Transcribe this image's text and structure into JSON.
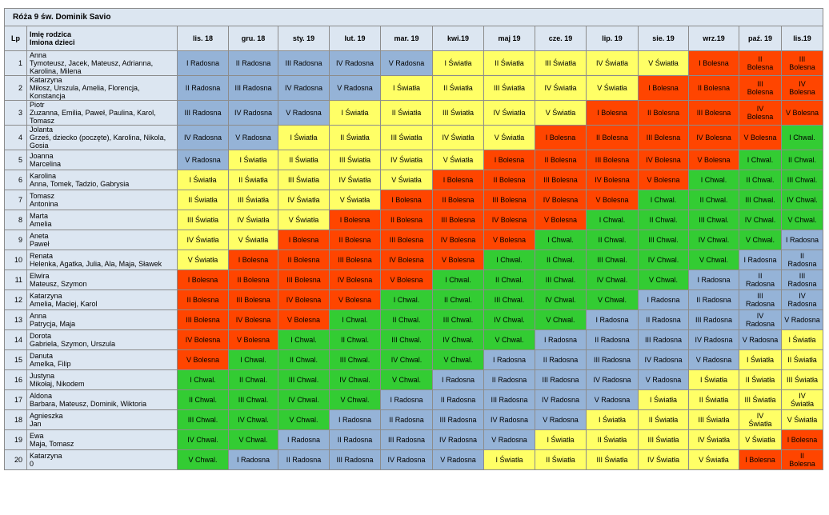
{
  "title": "Róża 9 św. Dominik Savio",
  "headers": {
    "lp": "Lp",
    "name1": "Imię rodzica",
    "name2": "Imiona dzieci",
    "months": [
      "lis. 18",
      "gru. 18",
      "sty. 19",
      "lut. 19",
      "mar. 19",
      "kwi.19",
      "maj 19",
      "cze. 19",
      "lip. 19",
      "sie. 19",
      "wrz.19",
      "paź. 19",
      "lis.19"
    ]
  },
  "colors": {
    "Radosna": "#95b3d7",
    "Światła": "#ffff66",
    "Bolesna": "#ff4500",
    "Chwal.": "#33cc33"
  },
  "rows": [
    {
      "lp": "1",
      "parent": "Anna",
      "children": "Tymoteusz, Jacek, Mateusz, Adrianna, Karolina, Milena",
      "cells": [
        "I Radosna",
        "II Radosna",
        "III Radosna",
        "IV Radosna",
        "V Radosna",
        "I Światła",
        "II Światła",
        "III Światła",
        "IV Światła",
        "V Światła",
        "I Bolesna",
        "II Bolesna",
        "III Bolesna"
      ]
    },
    {
      "lp": "2",
      "parent": "Katarzyna",
      "children": "Miłosz, Urszula, Amelia, Florencja, Konstancja",
      "cells": [
        "II Radosna",
        "III Radosna",
        "IV Radosna",
        "V Radosna",
        "I Światła",
        "II Światła",
        "III Światła",
        "IV Światła",
        "V Światła",
        "I Bolesna",
        "II Bolesna",
        "III Bolesna",
        "IV Bolesna"
      ]
    },
    {
      "lp": "3",
      "parent": "Piotr",
      "children": "Zuzanna, Emilia, Paweł, Paulina, Karol, Tomasz",
      "cells": [
        "III Radosna",
        "IV Radosna",
        "V Radosna",
        "I Światła",
        "II Światła",
        "III Światła",
        "IV Światła",
        "V Światła",
        "I Bolesna",
        "II Bolesna",
        "III Bolesna",
        "IV Bolesna",
        "V Bolesna"
      ]
    },
    {
      "lp": "4",
      "parent": "Jolanta",
      "children": "Grześ, dziecko (poczęte), Karolina, Nikola, Gosia",
      "cells": [
        "IV Radosna",
        "V Radosna",
        "I Światła",
        "II Światła",
        "III Światła",
        "IV Światła",
        "V Światła",
        "I Bolesna",
        "II Bolesna",
        "III Bolesna",
        "IV Bolesna",
        "V Bolesna",
        "I Chwal."
      ]
    },
    {
      "lp": "5",
      "parent": "Joanna",
      "children": "Marcelina",
      "cells": [
        "V Radosna",
        "I Światła",
        "II Światła",
        "III Światła",
        "IV Światła",
        "V Światła",
        "I Bolesna",
        "II Bolesna",
        "III Bolesna",
        "IV Bolesna",
        "V Bolesna",
        "I Chwal.",
        "II Chwal."
      ]
    },
    {
      "lp": "6",
      "parent": "Karolina",
      "children": "Anna, Tomek, Tadzio, Gabrysia",
      "cells": [
        "I Światła",
        "II Światła",
        "III Światła",
        "IV Światła",
        "V Światła",
        "I Bolesna",
        "II Bolesna",
        "III Bolesna",
        "IV Bolesna",
        "V Bolesna",
        "I Chwal.",
        "II Chwal.",
        "III Chwal."
      ]
    },
    {
      "lp": "7",
      "parent": "Tomasz",
      "children": "Antonina",
      "cells": [
        "II Światła",
        "III Światła",
        "IV Światła",
        "V Światła",
        "I Bolesna",
        "II Bolesna",
        "III Bolesna",
        "IV Bolesna",
        "V Bolesna",
        "I Chwal.",
        "II Chwal.",
        "III Chwal.",
        "IV Chwal."
      ]
    },
    {
      "lp": "8",
      "parent": "Marta",
      "children": "Amelia",
      "cells": [
        "III Światła",
        "IV Światła",
        "V Światła",
        "I Bolesna",
        "II Bolesna",
        "III Bolesna",
        "IV Bolesna",
        "V Bolesna",
        "I Chwal.",
        "II Chwal.",
        "III Chwal.",
        "IV Chwal.",
        "V Chwal."
      ]
    },
    {
      "lp": "9",
      "parent": "Aneta",
      "children": "Paweł",
      "cells": [
        "IV Światła",
        "V Światła",
        "I Bolesna",
        "II Bolesna",
        "III Bolesna",
        "IV Bolesna",
        "V Bolesna",
        "I Chwal.",
        "II Chwal.",
        "III Chwal.",
        "IV Chwal.",
        "V Chwal.",
        "I Radosna"
      ]
    },
    {
      "lp": "10",
      "parent": "Renata",
      "children": "Helenka, Agatka, Julia, Ala, Maja, Sławek",
      "cells": [
        "V Światła",
        "I Bolesna",
        "II Bolesna",
        "III Bolesna",
        "IV Bolesna",
        "V Bolesna",
        "I Chwal.",
        "II Chwal.",
        "III Chwal.",
        "IV Chwal.",
        "V Chwal.",
        "I Radosna",
        "II Radosna"
      ]
    },
    {
      "lp": "11",
      "parent": "Elwira",
      "children": "Mateusz, Szymon",
      "cells": [
        "I Bolesna",
        "II Bolesna",
        "III Bolesna",
        "IV Bolesna",
        "V Bolesna",
        "I Chwal.",
        "II Chwal.",
        "III Chwal.",
        "IV Chwal.",
        "V Chwal.",
        "I Radosna",
        "II Radosna",
        "III Radosna"
      ]
    },
    {
      "lp": "12",
      "parent": "Katarzyna",
      "children": "Amelia, Maciej, Karol",
      "cells": [
        "II Bolesna",
        "III Bolesna",
        "IV Bolesna",
        "V Bolesna",
        "I Chwal.",
        "II Chwal.",
        "III Chwal.",
        "IV Chwal.",
        "V Chwal.",
        "I Radosna",
        "II Radosna",
        "III Radosna",
        "IV Radosna"
      ]
    },
    {
      "lp": "13",
      "parent": "Anna",
      "children": "Patrycja, Maja",
      "cells": [
        "III Bolesna",
        "IV Bolesna",
        "V Bolesna",
        "I Chwal.",
        "II Chwal.",
        "III Chwal.",
        "IV Chwal.",
        "V Chwal.",
        "I Radosna",
        "II Radosna",
        "III Radosna",
        "IV Radosna",
        "V Radosna"
      ]
    },
    {
      "lp": "14",
      "parent": "Dorota",
      "children": "Gabriela, Szymon, Urszula",
      "cells": [
        "IV Bolesna",
        "V Bolesna",
        "I Chwal.",
        "II Chwal.",
        "III Chwal.",
        "IV Chwal.",
        "V Chwal.",
        "I Radosna",
        "II Radosna",
        "III Radosna",
        "IV Radosna",
        "V Radosna",
        "I Światła"
      ]
    },
    {
      "lp": "15",
      "parent": "Danuta",
      "children": "Amelka, Filip",
      "cells": [
        "V Bolesna",
        "I Chwal.",
        "II Chwal.",
        "III Chwal.",
        "IV Chwal.",
        "V Chwal.",
        "I Radosna",
        "II Radosna",
        "III Radosna",
        "IV Radosna",
        "V Radosna",
        "I Światła",
        "II Światła"
      ]
    },
    {
      "lp": "16",
      "parent": "Justyna",
      "children": "Mikołaj, Nikodem",
      "cells": [
        "I Chwal.",
        "II Chwal.",
        "III Chwal.",
        "IV Chwal.",
        "V Chwal.",
        "I Radosna",
        "II Radosna",
        "III Radosna",
        "IV Radosna",
        "V Radosna",
        "I Światła",
        "II Światła",
        "III Światła"
      ]
    },
    {
      "lp": "17",
      "parent": "Aldona",
      "children": "Barbara, Mateusz, Dominik, Wiktoria",
      "cells": [
        "II Chwal.",
        "III Chwal.",
        "IV Chwal.",
        "V Chwal.",
        "I Radosna",
        "II Radosna",
        "III Radosna",
        "IV Radosna",
        "V Radosna",
        "I Światła",
        "II Światła",
        "III Światła",
        "IV Światła"
      ]
    },
    {
      "lp": "18",
      "parent": "Agnieszka",
      "children": "Jan",
      "cells": [
        "III Chwal.",
        "IV Chwal.",
        "V Chwal.",
        "I Radosna",
        "II Radosna",
        "III Radosna",
        "IV Radosna",
        "V Radosna",
        "I Światła",
        "II Światła",
        "III Światła",
        "IV Światła",
        "V Światła"
      ]
    },
    {
      "lp": "19",
      "parent": "Ewa",
      "children": "Maja, Tomasz",
      "cells": [
        "IV Chwal.",
        "V Chwal.",
        "I Radosna",
        "II Radosna",
        "III Radosna",
        "IV Radosna",
        "V Radosna",
        "I Światła",
        "II Światła",
        "III Światła",
        "IV Światła",
        "V Światła",
        "I Bolesna"
      ]
    },
    {
      "lp": "20",
      "parent": "Katarzyna",
      "children": "0",
      "cells": [
        "V Chwal.",
        "I Radosna",
        "II Radosna",
        "III Radosna",
        "IV Radosna",
        "V Radosna",
        "I Światła",
        "II Światła",
        "III Światła",
        "IV Światła",
        "V Światła",
        "I Bolesna",
        "II Bolesna"
      ]
    }
  ]
}
